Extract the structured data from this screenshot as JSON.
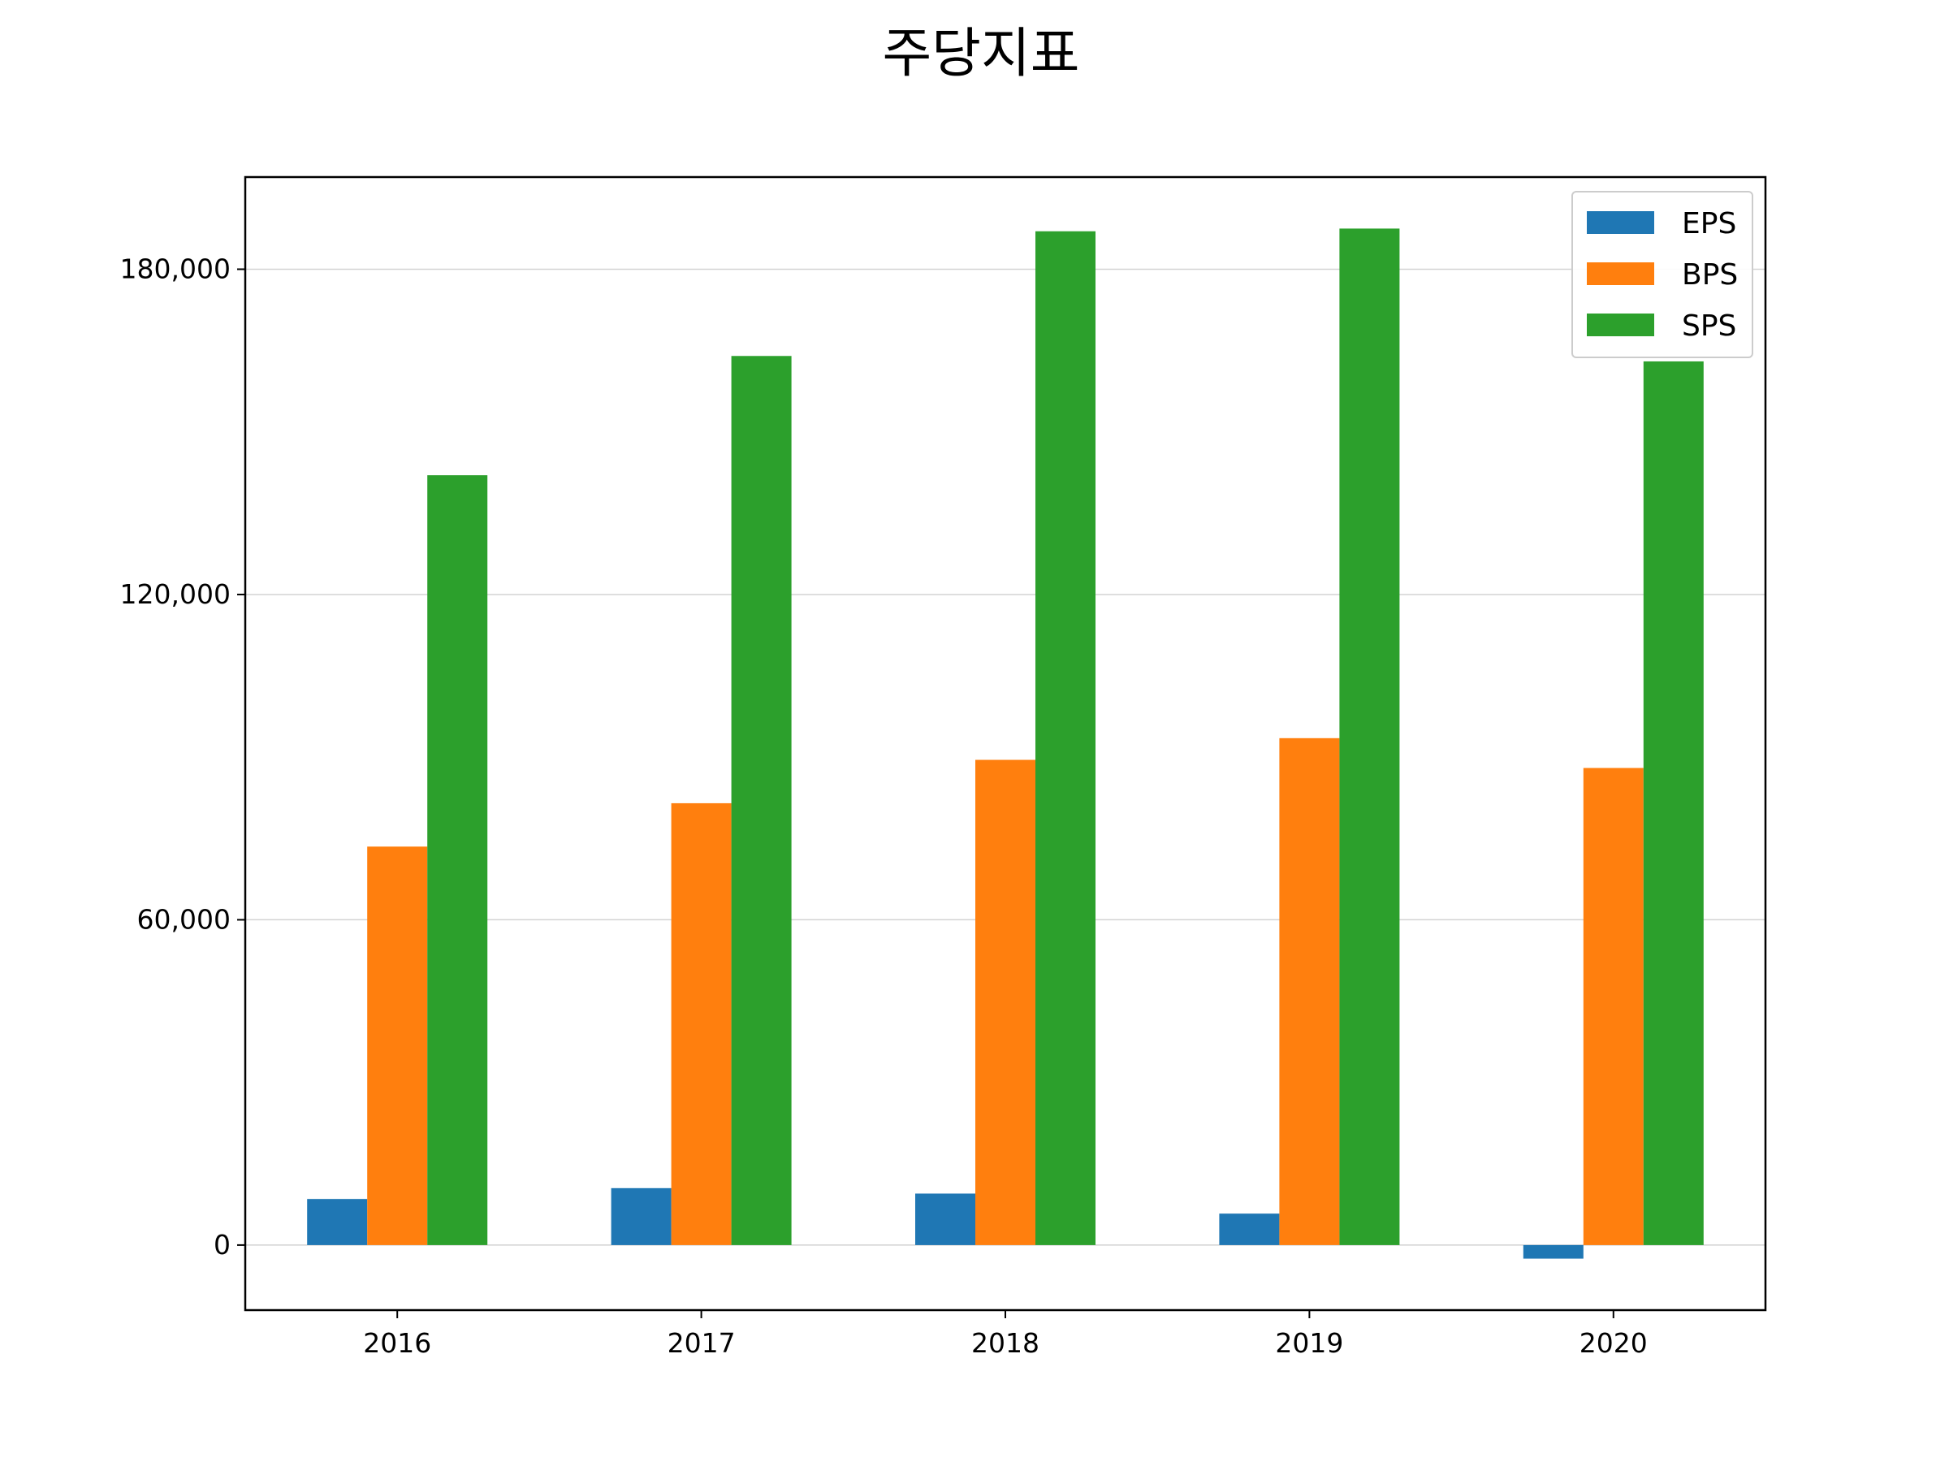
{
  "chart_data": {
    "type": "bar",
    "title": "주당지표",
    "xlabel": "",
    "ylabel": "",
    "categories": [
      "2016",
      "2017",
      "2018",
      "2019",
      "2020"
    ],
    "series": [
      {
        "name": "EPS",
        "color": "#1f77b4",
        "values": [
          8500,
          10500,
          9500,
          5800,
          -2500
        ]
      },
      {
        "name": "BPS",
        "color": "#ff7f0e",
        "values": [
          73500,
          81500,
          89500,
          93500,
          88000
        ]
      },
      {
        "name": "SPS",
        "color": "#2ca02c",
        "values": [
          142000,
          164000,
          187000,
          187500,
          163000
        ]
      }
    ],
    "ylim": [
      -12000,
      197000
    ],
    "yticks": [
      0,
      60000,
      120000,
      180000
    ],
    "ytick_labels": [
      "0",
      "60,000",
      "120,000",
      "180,000"
    ],
    "grid": "horizontal",
    "legend_position": "top-right"
  }
}
